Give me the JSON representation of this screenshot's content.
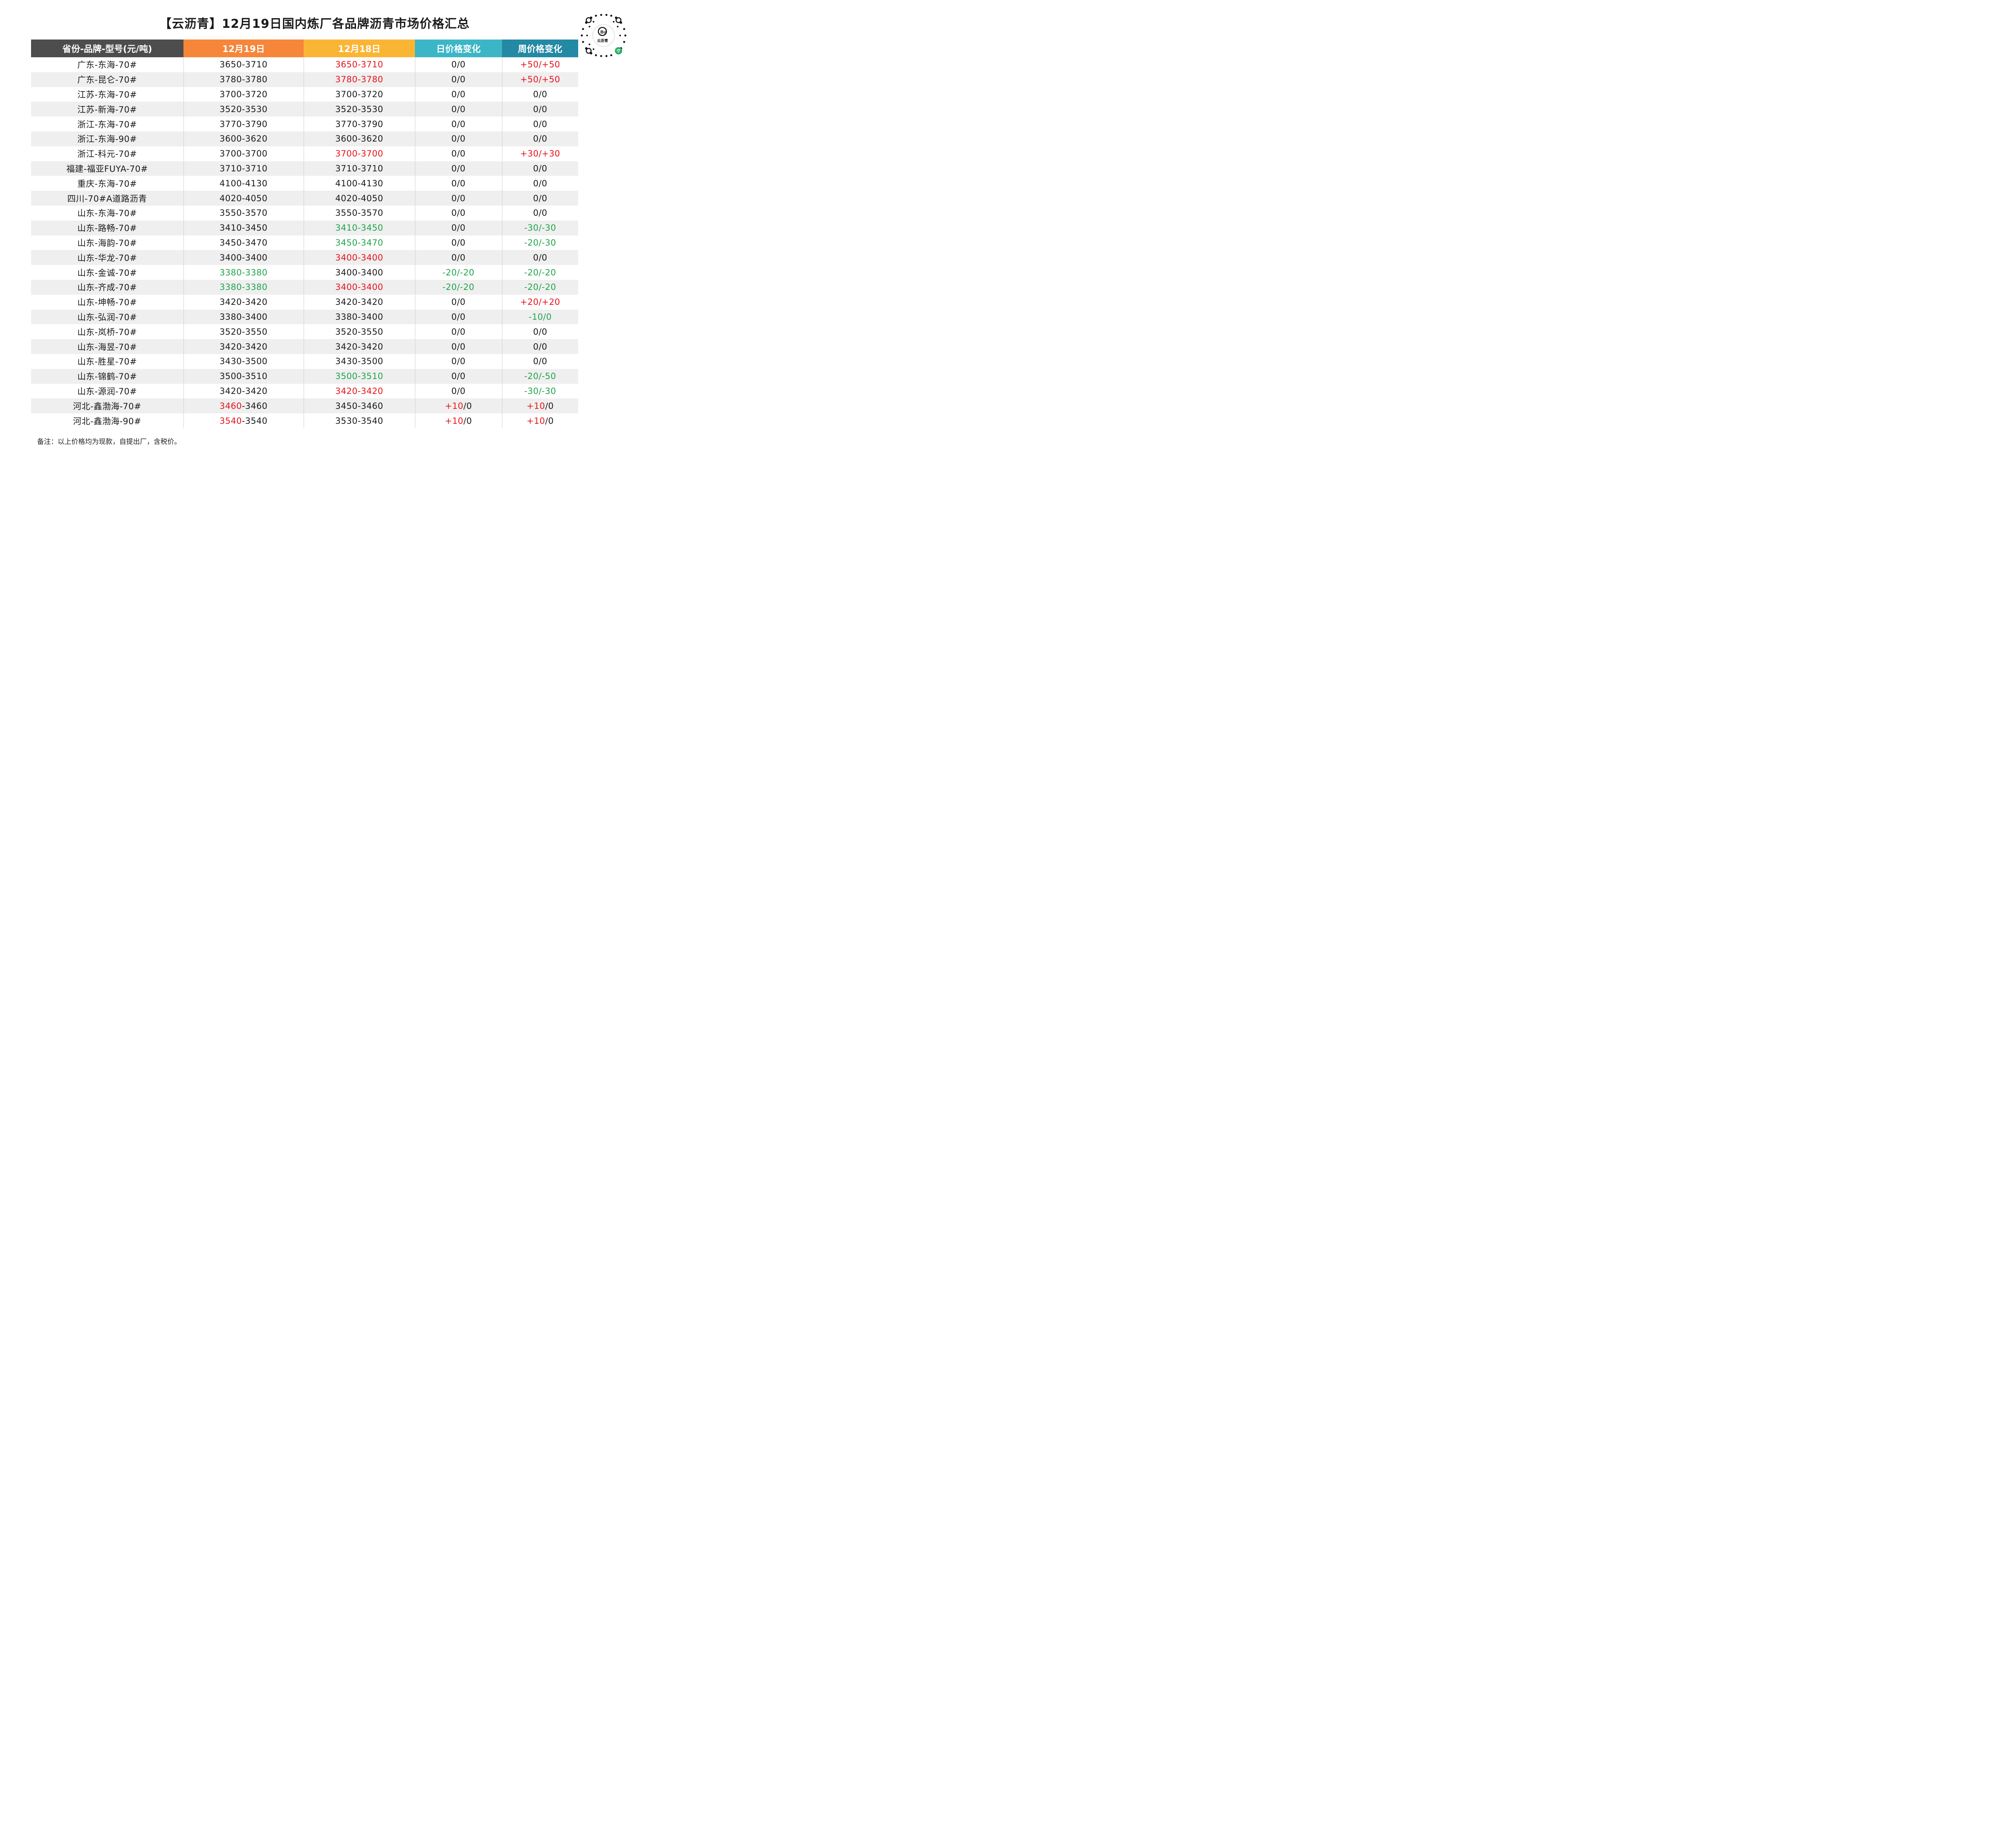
{
  "title": "【云沥青】12月19日国内炼厂各品牌沥青市场价格汇总",
  "logo_text": "云沥青",
  "headers": [
    "省份-品牌-型号(元/吨)",
    "12月19日",
    "12月18日",
    "日价格变化",
    "周价格变化"
  ],
  "colors": {
    "red": "#e8121a",
    "green": "#1fa44a",
    "header_dark": "#4d4d4d",
    "header_orange": "#f5863a",
    "header_yellow": "#fbb535",
    "header_teal": "#3cb6c6",
    "header_blue": "#2389a4"
  },
  "rows": [
    {
      "name": "广东-东海-70#",
      "d19": "3650-3710",
      "d18": "3650-3710",
      "d18_color": "red",
      "day": "0/0",
      "week": "+50/+50",
      "week_color": "red"
    },
    {
      "name": "广东-昆仑-70#",
      "d19": "3780-3780",
      "d18": "3780-3780",
      "d18_color": "red",
      "day": "0/0",
      "week": "+50/+50",
      "week_color": "red"
    },
    {
      "name": "江苏-东海-70#",
      "d19": "3700-3720",
      "d18": "3700-3720",
      "day": "0/0",
      "week": "0/0"
    },
    {
      "name": "江苏-新海-70#",
      "d19": "3520-3530",
      "d18": "3520-3530",
      "day": "0/0",
      "week": "0/0"
    },
    {
      "name": "浙江-东海-70#",
      "d19": "3770-3790",
      "d18": "3770-3790",
      "day": "0/0",
      "week": "0/0"
    },
    {
      "name": "浙江-东海-90#",
      "d19": "3600-3620",
      "d18": "3600-3620",
      "day": "0/0",
      "week": "0/0"
    },
    {
      "name": "浙江-科元-70#",
      "d19": "3700-3700",
      "d18": "3700-3700",
      "d18_color": "red",
      "day": "0/0",
      "week": "+30/+30",
      "week_color": "red"
    },
    {
      "name": "福建-福亚FUYA-70#",
      "d19": "3710-3710",
      "d18": "3710-3710",
      "day": "0/0",
      "week": "0/0"
    },
    {
      "name": "重庆-东海-70#",
      "d19": "4100-4130",
      "d18": "4100-4130",
      "day": "0/0",
      "week": "0/0"
    },
    {
      "name": "四川-70#A道路沥青",
      "d19": "4020-4050",
      "d18": "4020-4050",
      "day": "0/0",
      "week": "0/0"
    },
    {
      "name": "山东-东海-70#",
      "d19": "3550-3570",
      "d18": "3550-3570",
      "day": "0/0",
      "week": "0/0"
    },
    {
      "name": "山东-路畅-70#",
      "d19": "3410-3450",
      "d18": "3410-3450",
      "d18_color": "green",
      "day": "0/0",
      "week": "-30/-30",
      "week_color": "green"
    },
    {
      "name": "山东-海韵-70#",
      "d19": "3450-3470",
      "d18": "3450-3470",
      "d18_color": "green",
      "day": "0/0",
      "week": "-20/-30",
      "week_color": "green"
    },
    {
      "name": "山东-华龙-70#",
      "d19": "3400-3400",
      "d18": "3400-3400",
      "d18_color": "red",
      "day": "0/0",
      "week": "0/0"
    },
    {
      "name": "山东-金诚-70#",
      "d19": "3380-3380",
      "d19_color": "green",
      "d18": "3400-3400",
      "day": "-20/-20",
      "day_color": "green",
      "week": "-20/-20",
      "week_color": "green"
    },
    {
      "name": "山东-齐成-70#",
      "d19": "3380-3380",
      "d19_color": "green",
      "d18": "3400-3400",
      "d18_color": "red",
      "day": "-20/-20",
      "day_color": "green",
      "week": "-20/-20",
      "week_color": "green"
    },
    {
      "name": "山东-坤畅-70#",
      "d19": "3420-3420",
      "d18": "3420-3420",
      "day": "0/0",
      "week": "+20/+20",
      "week_color": "red"
    },
    {
      "name": "山东-弘润-70#",
      "d19": "3380-3400",
      "d18": "3380-3400",
      "day": "0/0",
      "week": "-10/0",
      "week_color": "green"
    },
    {
      "name": "山东-岚桥-70#",
      "d19": "3520-3550",
      "d18": "3520-3550",
      "day": "0/0",
      "week": "0/0"
    },
    {
      "name": "山东-海昱-70#",
      "d19": "3420-3420",
      "d18": "3420-3420",
      "day": "0/0",
      "week": "0/0"
    },
    {
      "name": "山东-胜星-70#",
      "d19": "3430-3500",
      "d18": "3430-3500",
      "day": "0/0",
      "week": "0/0"
    },
    {
      "name": "山东-锦鹤-70#",
      "d19": "3500-3510",
      "d18": "3500-3510",
      "d18_color": "green",
      "day": "0/0",
      "week": "-20/-50",
      "week_color": "green"
    },
    {
      "name": "山东-源润-70#",
      "d19": "3420-3420",
      "d18": "3420-3420",
      "d18_color": "red",
      "day": "0/0",
      "week": "-30/-30",
      "week_color": "green"
    },
    {
      "name": "河北-鑫渤海-70#",
      "d19": "3460-3460",
      "d19_parts": [
        [
          "3460",
          "red"
        ],
        [
          "-3460",
          ""
        ]
      ],
      "d18": "3450-3460",
      "day": "+10/0",
      "day_parts": [
        [
          "+10",
          "red"
        ],
        [
          "/0",
          ""
        ]
      ],
      "week": "+10/0",
      "week_parts": [
        [
          "+10",
          "red"
        ],
        [
          "/0",
          ""
        ]
      ]
    },
    {
      "name": "河北-鑫渤海-90#",
      "d19": "3540-3540",
      "d19_parts": [
        [
          "3540",
          "red"
        ],
        [
          "-3540",
          ""
        ]
      ],
      "d18": "3530-3540",
      "day": "+10/0",
      "day_parts": [
        [
          "+10",
          "red"
        ],
        [
          "/0",
          ""
        ]
      ],
      "week": "+10/0",
      "week_parts": [
        [
          "+10",
          "red"
        ],
        [
          "/0",
          ""
        ]
      ]
    }
  ],
  "note": "备注：以上价格均为现款，自提出厂，含税价。"
}
